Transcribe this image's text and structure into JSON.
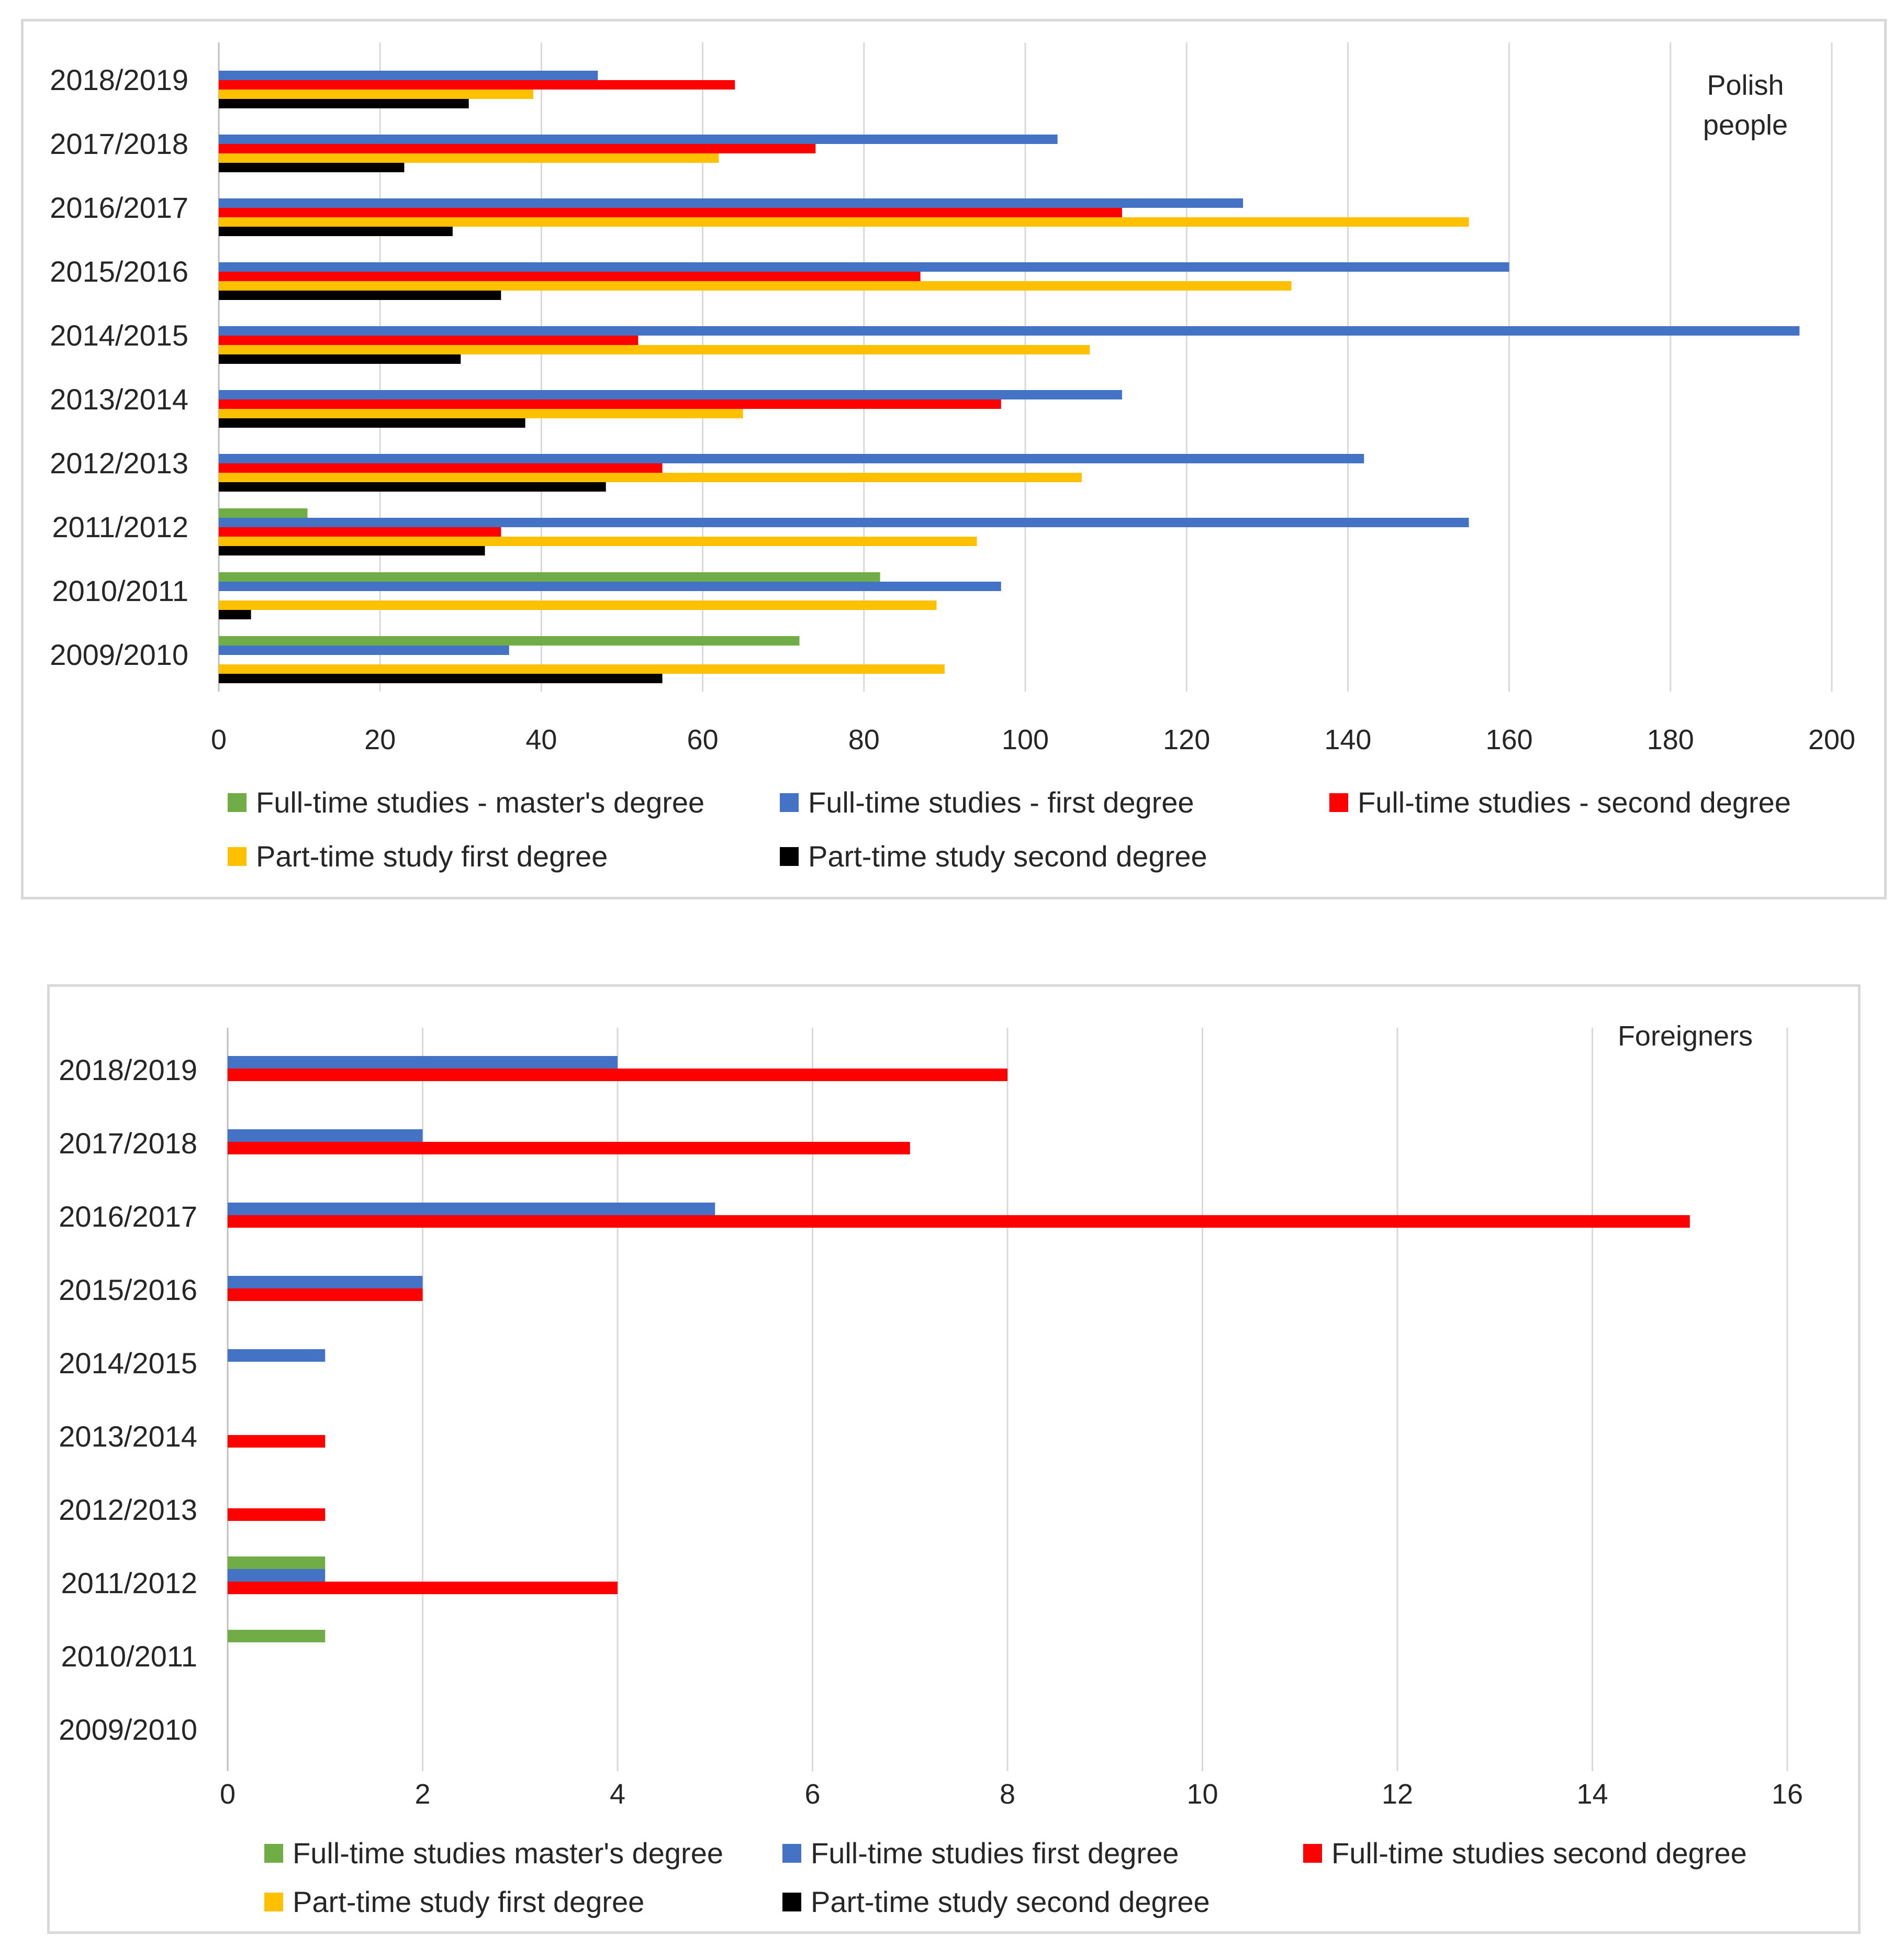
{
  "chart_data": [
    {
      "type": "bar",
      "orientation": "horizontal",
      "corner_label": [
        "Polish",
        "people"
      ],
      "categories": [
        "2018/2019",
        "2017/2018",
        "2016/2017",
        "2015/2016",
        "2014/2015",
        "2013/2014",
        "2012/2013",
        "2011/2012",
        "2010/2011",
        "2009/2010"
      ],
      "xlim": [
        0,
        200
      ],
      "xticks": [
        0,
        20,
        40,
        60,
        80,
        100,
        120,
        140,
        160,
        180,
        200
      ],
      "grid": true,
      "legend_position": "bottom",
      "series": [
        {
          "name": "Full-time studies - master's degree",
          "color": "#70ad47",
          "values": [
            0,
            0,
            0,
            0,
            0,
            0,
            0,
            11,
            82,
            72
          ]
        },
        {
          "name": "Full-time studies - first degree",
          "color": "#4472c4",
          "values": [
            47,
            104,
            127,
            160,
            196,
            112,
            142,
            155,
            97,
            36
          ]
        },
        {
          "name": "Full-time studies - second degree",
          "color": "#ff0000",
          "values": [
            64,
            74,
            112,
            87,
            52,
            97,
            55,
            35,
            0,
            0
          ]
        },
        {
          "name": "Part-time study first degree",
          "color": "#ffc000",
          "values": [
            39,
            62,
            155,
            133,
            108,
            65,
            107,
            94,
            89,
            90
          ]
        },
        {
          "name": "Part-time study second degree",
          "color": "#000000",
          "values": [
            31,
            23,
            29,
            35,
            30,
            38,
            48,
            33,
            4,
            55
          ]
        }
      ]
    },
    {
      "type": "bar",
      "orientation": "horizontal",
      "corner_label": [
        "Foreigners"
      ],
      "categories": [
        "2018/2019",
        "2017/2018",
        "2016/2017",
        "2015/2016",
        "2014/2015",
        "2013/2014",
        "2012/2013",
        "2011/2012",
        "2010/2011",
        "2009/2010"
      ],
      "xlim": [
        0,
        16
      ],
      "xticks": [
        0,
        2,
        4,
        6,
        8,
        10,
        12,
        14,
        16
      ],
      "grid": true,
      "legend_position": "bottom",
      "series": [
        {
          "name": "Full-time studies master's degree",
          "color": "#70ad47",
          "values": [
            0,
            0,
            0,
            0,
            0,
            0,
            0,
            1,
            1,
            0
          ]
        },
        {
          "name": "Full-time studies first degree",
          "color": "#4472c4",
          "values": [
            4,
            2,
            5,
            2,
            1,
            0,
            0,
            1,
            0,
            0
          ]
        },
        {
          "name": "Full-time studies second degree",
          "color": "#ff0000",
          "values": [
            8,
            7,
            15,
            2,
            0,
            1,
            1,
            4,
            0,
            0
          ]
        },
        {
          "name": "Part-time study first degree",
          "color": "#ffc000",
          "values": [
            0,
            0,
            0,
            0,
            0,
            0,
            0,
            0,
            0,
            0
          ]
        },
        {
          "name": "Part-time study second degree",
          "color": "#000000",
          "values": [
            0,
            0,
            0,
            0,
            0,
            0,
            0,
            0,
            0,
            0
          ]
        }
      ]
    }
  ]
}
